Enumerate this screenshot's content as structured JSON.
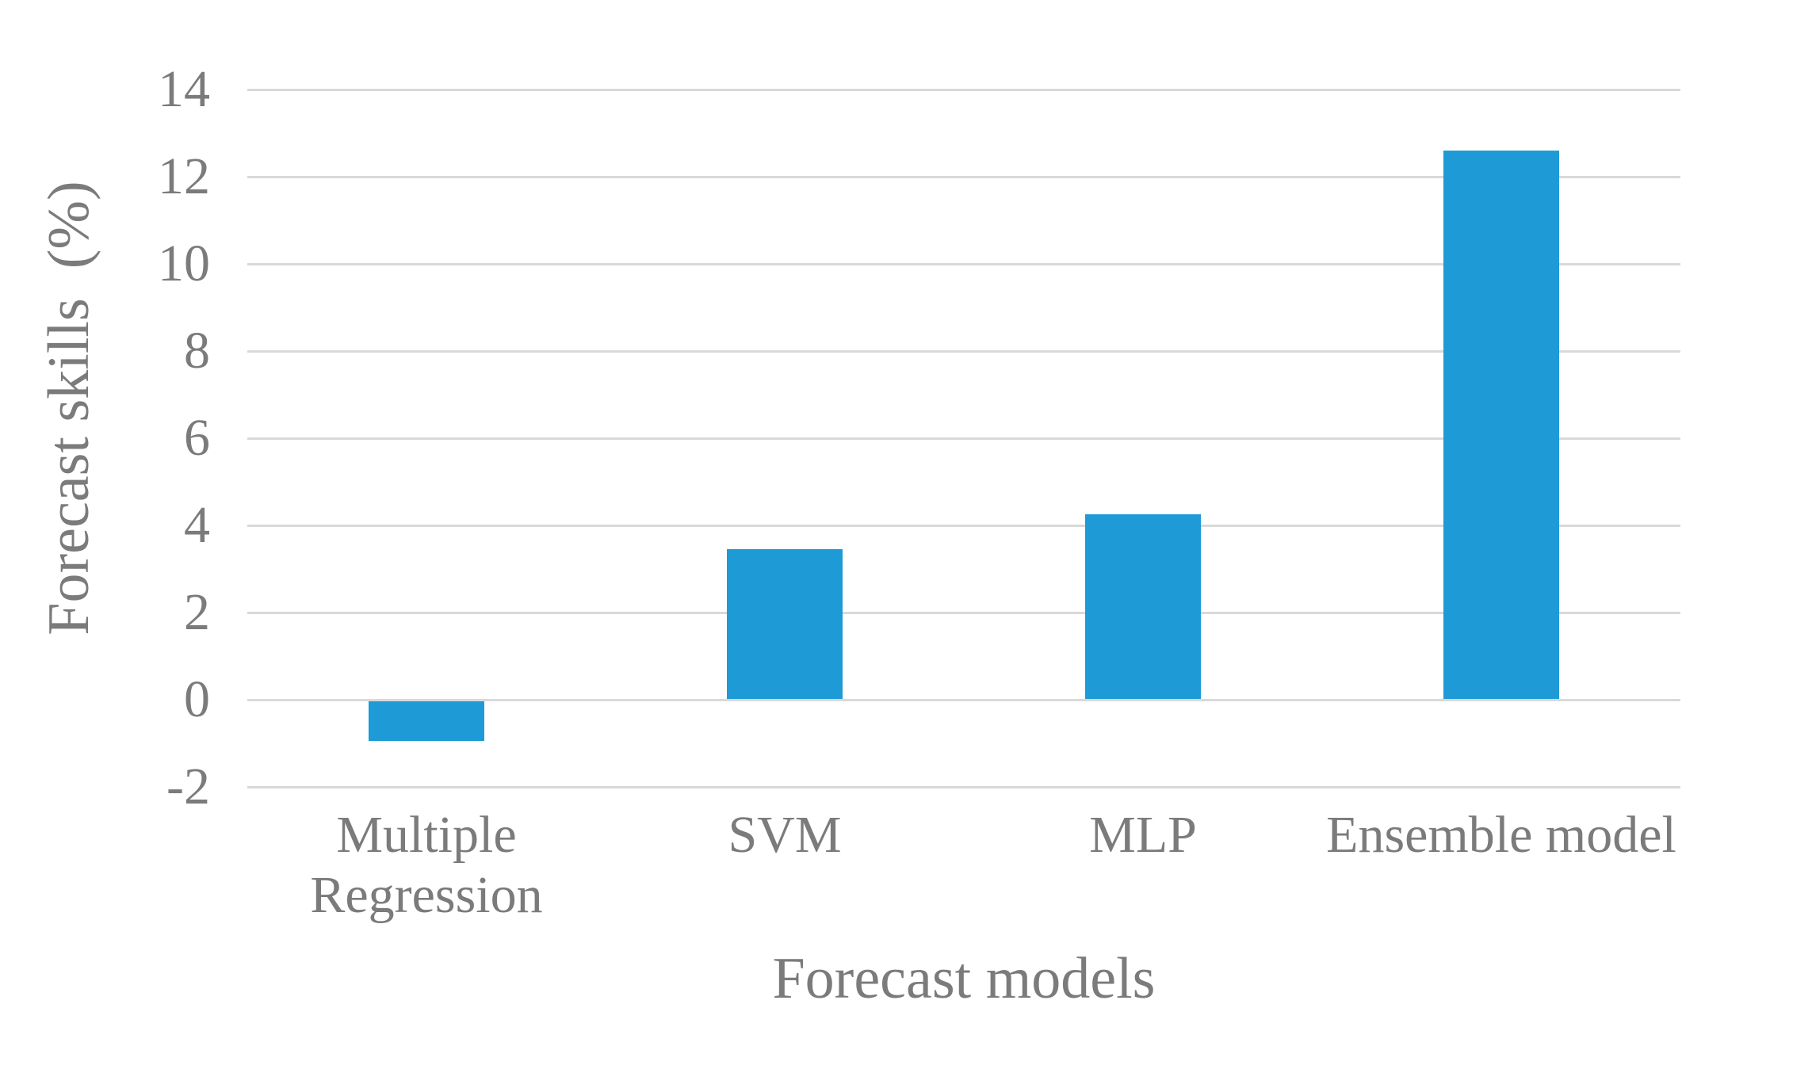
{
  "chart_data": {
    "type": "bar",
    "title": "",
    "categories": [
      "Multiple Regression",
      "SVM",
      "MLP",
      "Ensemble model"
    ],
    "values": [
      -0.95,
      3.45,
      4.25,
      12.6
    ],
    "xlabel": "Forecast models",
    "ylabel": "Forecast skills  (%)",
    "ylim": [
      -2,
      14
    ],
    "ytick_step": 2,
    "yticks": [
      14,
      12,
      10,
      8,
      6,
      4,
      2,
      0,
      -2
    ],
    "grid": "horizontal-only",
    "legend": false,
    "bar_color": "#1E9BD7",
    "gridline_color": "#D9D9D9",
    "text_color": "#7B7B7B",
    "background": "#FFFFFF"
  }
}
